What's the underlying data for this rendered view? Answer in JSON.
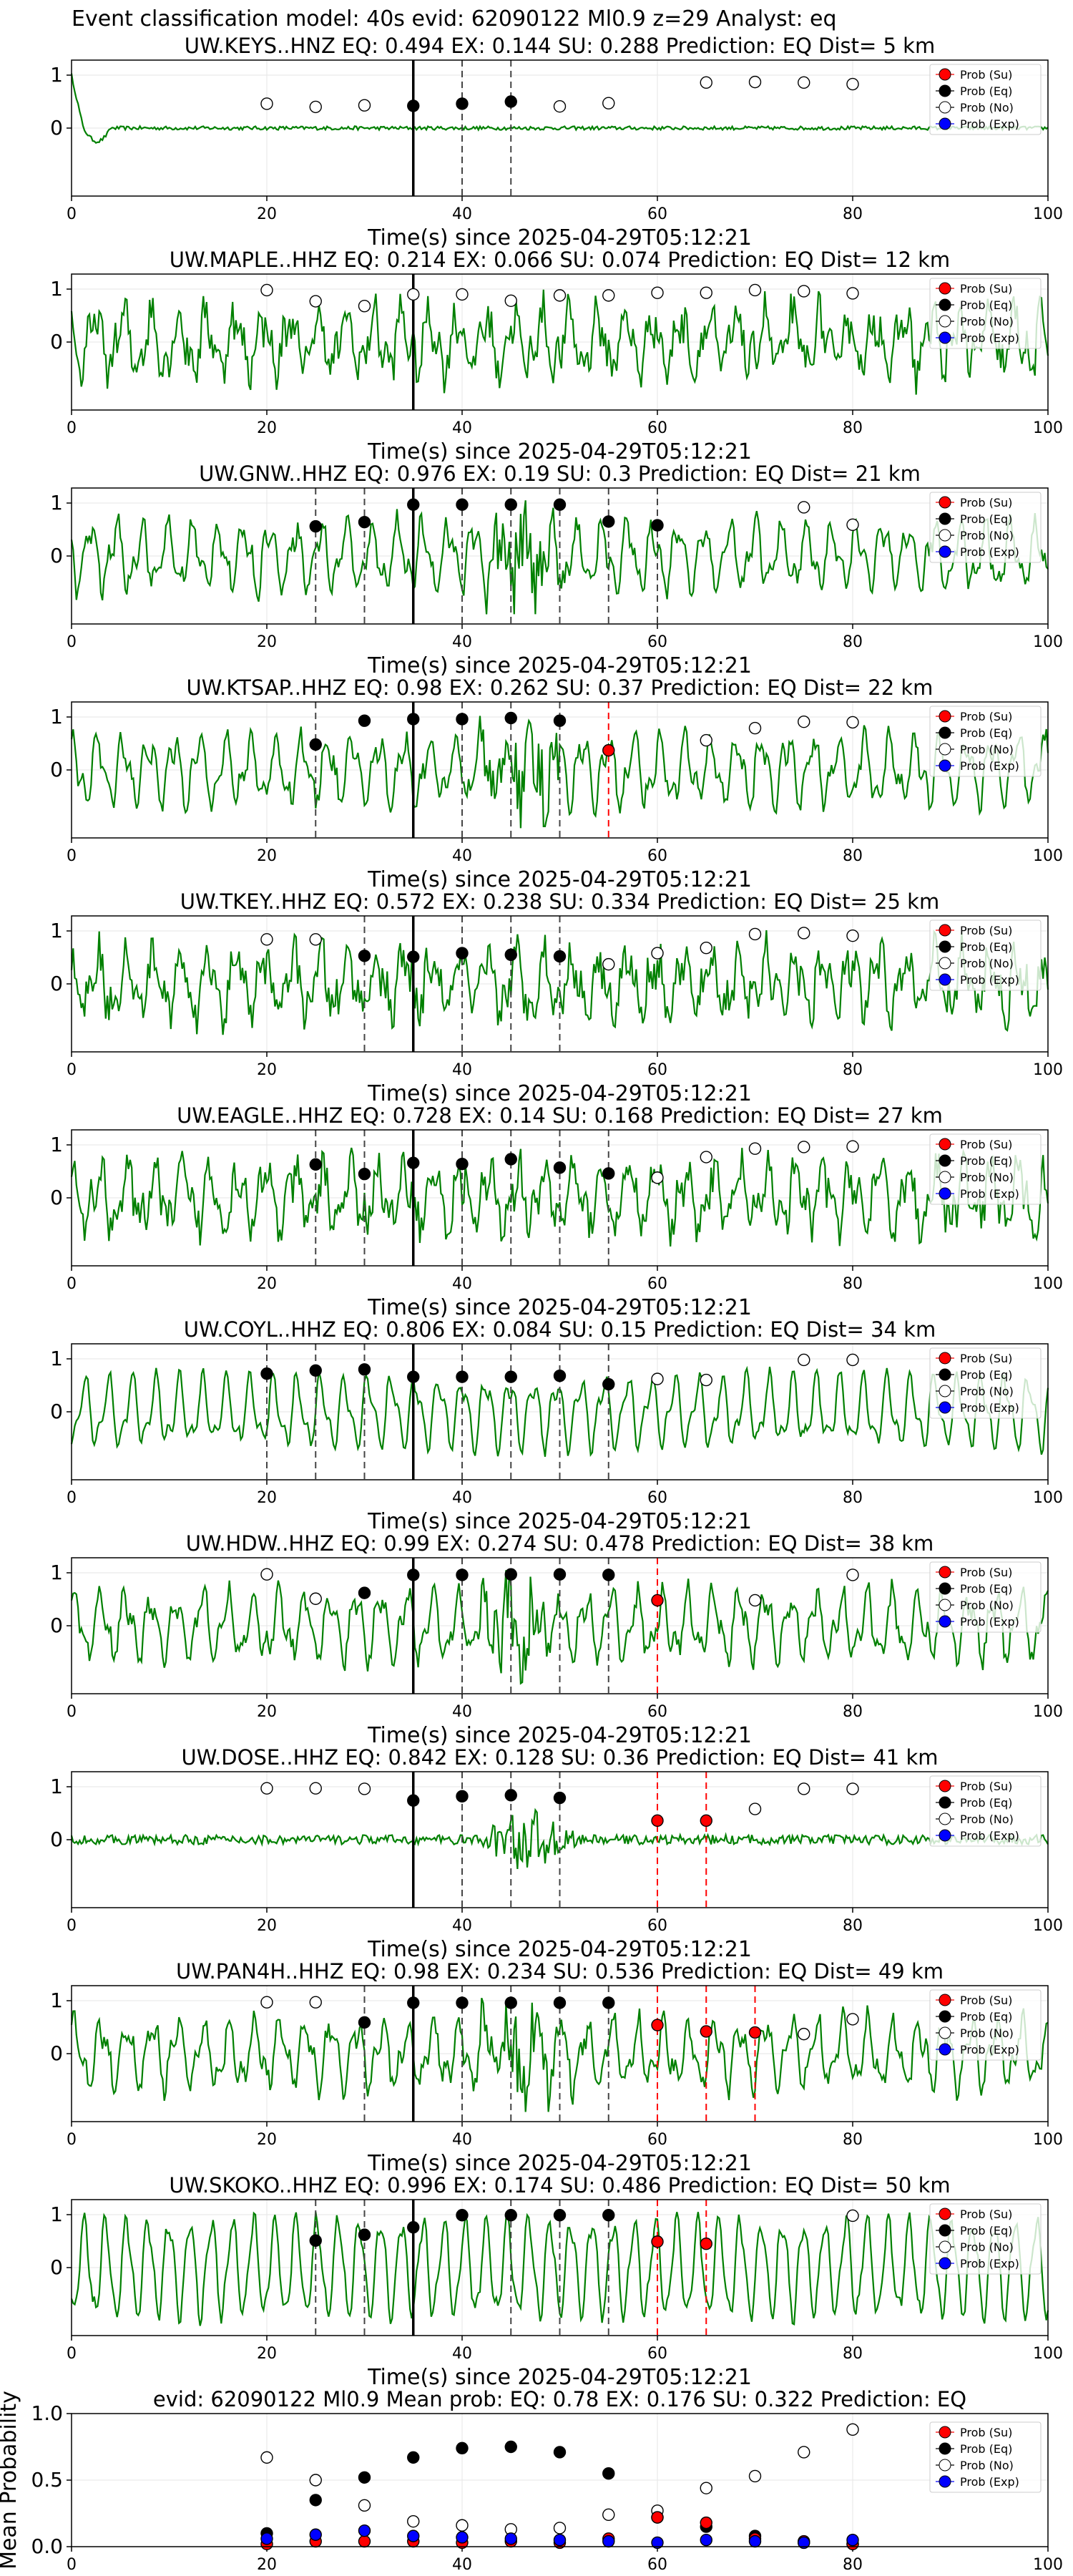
{
  "figure": {
    "suptitle": "Event classification model: 40s evid: 62090122 Ml0.9 z=29 Analyst: eq",
    "xlabel": "Time(s) since 2025-04-29T05:12:21",
    "legend": [
      "Prob (Su)",
      "Prob (Eq)",
      "Prob (No)",
      "Prob (Exp)"
    ],
    "colors": {
      "waveform": "#008000",
      "su": "#ff0000",
      "eq": "#000000",
      "no": "#ffffff",
      "exp": "#0000ff",
      "pick": "#000000",
      "su_line": "#ff0000"
    }
  },
  "chart_data": [
    {
      "type": "line",
      "station": "UW.KEYS..HNZ",
      "title": "UW.KEYS..HNZ   EQ: 0.494  EX: 0.144  SU: 0.288   Prediction: EQ    Dist= 5 km",
      "xlim": [
        0,
        100
      ],
      "ylim": [
        -1,
        1
      ],
      "xticks": [
        0,
        20,
        40,
        60,
        80,
        100
      ],
      "yticks": [
        0,
        1
      ],
      "grid": true,
      "legend": "right",
      "p_arrival": 35,
      "style": "keys",
      "eq_lines": [
        40,
        45
      ],
      "su_lines": [],
      "eq_points": [
        [
          35,
          0.42
        ],
        [
          40,
          0.46
        ],
        [
          45,
          0.5
        ]
      ],
      "su_points": [],
      "no_points": [
        [
          20,
          0.46
        ],
        [
          25,
          0.4
        ],
        [
          30,
          0.43
        ],
        [
          50,
          0.41
        ],
        [
          55,
          0.47
        ],
        [
          65,
          0.86
        ],
        [
          70,
          0.87
        ],
        [
          75,
          0.86
        ],
        [
          80,
          0.83
        ]
      ]
    },
    {
      "type": "line",
      "station": "UW.MAPLE..HHZ",
      "title": "UW.MAPLE..HHZ   EQ: 0.214  EX: 0.066  SU: 0.074   Prediction: EQ    Dist= 12 km",
      "xlim": [
        0,
        100
      ],
      "ylim": [
        -1,
        1
      ],
      "xticks": [
        0,
        20,
        40,
        60,
        80,
        100
      ],
      "yticks": [
        0,
        1
      ],
      "grid": true,
      "legend": "right",
      "p_arrival": 35,
      "style": "noisy",
      "eq_lines": [],
      "su_lines": [],
      "eq_points": [],
      "su_points": [],
      "no_points": [
        [
          20,
          0.98
        ],
        [
          25,
          0.77
        ],
        [
          30,
          0.68
        ],
        [
          35,
          0.9
        ],
        [
          40,
          0.9
        ],
        [
          45,
          0.78
        ],
        [
          50,
          0.88
        ],
        [
          55,
          0.88
        ],
        [
          60,
          0.93
        ],
        [
          65,
          0.93
        ],
        [
          70,
          0.98
        ],
        [
          75,
          0.96
        ],
        [
          80,
          0.92
        ]
      ]
    },
    {
      "type": "line",
      "station": "UW.GNW..HHZ",
      "title": "UW.GNW..HHZ   EQ: 0.976  EX: 0.19  SU: 0.3   Prediction: EQ    Dist= 21 km",
      "xlim": [
        0,
        100
      ],
      "ylim": [
        -1,
        1
      ],
      "xticks": [
        0,
        20,
        40,
        60,
        80,
        100
      ],
      "yticks": [
        0,
        1
      ],
      "grid": true,
      "legend": "right",
      "p_arrival": 35,
      "style": "burst",
      "eq_lines": [
        25,
        30,
        40,
        45,
        50,
        55,
        60
      ],
      "su_lines": [],
      "eq_points": [
        [
          25,
          0.56
        ],
        [
          30,
          0.64
        ],
        [
          35,
          0.97
        ],
        [
          40,
          0.97
        ],
        [
          45,
          0.97
        ],
        [
          50,
          0.97
        ],
        [
          55,
          0.65
        ],
        [
          60,
          0.58
        ]
      ],
      "su_points": [],
      "no_points": [
        [
          75,
          0.92
        ],
        [
          80,
          0.59
        ]
      ]
    },
    {
      "type": "line",
      "station": "UW.KTSAP..HHZ",
      "title": "UW.KTSAP..HHZ   EQ: 0.98  EX: 0.262  SU: 0.37   Prediction: EQ    Dist= 22 km",
      "xlim": [
        0,
        100
      ],
      "ylim": [
        -1,
        1
      ],
      "xticks": [
        0,
        20,
        40,
        60,
        80,
        100
      ],
      "yticks": [
        0,
        1
      ],
      "grid": true,
      "legend": "right",
      "p_arrival": 35,
      "style": "burst",
      "eq_lines": [
        25,
        40,
        45,
        50
      ],
      "su_lines": [
        55
      ],
      "eq_points": [
        [
          25,
          0.48
        ],
        [
          30,
          0.93
        ],
        [
          35,
          0.96
        ],
        [
          40,
          0.96
        ],
        [
          45,
          0.98
        ],
        [
          50,
          0.93
        ]
      ],
      "su_points": [
        [
          55,
          0.37
        ]
      ],
      "no_points": [
        [
          65,
          0.56
        ],
        [
          70,
          0.79
        ],
        [
          75,
          0.91
        ],
        [
          80,
          0.9
        ]
      ]
    },
    {
      "type": "line",
      "station": "UW.TKEY..HHZ",
      "title": "UW.TKEY..HHZ   EQ: 0.572  EX: 0.238  SU: 0.334   Prediction: EQ    Dist= 25 km",
      "xlim": [
        0,
        100
      ],
      "ylim": [
        -1,
        1
      ],
      "xticks": [
        0,
        20,
        40,
        60,
        80,
        100
      ],
      "yticks": [
        0,
        1
      ],
      "grid": true,
      "legend": "right",
      "p_arrival": 35,
      "style": "noisy",
      "eq_lines": [
        30,
        40,
        45,
        50
      ],
      "su_lines": [],
      "eq_points": [
        [
          30,
          0.53
        ],
        [
          35,
          0.51
        ],
        [
          40,
          0.58
        ],
        [
          45,
          0.55
        ],
        [
          50,
          0.52
        ]
      ],
      "su_points": [],
      "no_points": [
        [
          20,
          0.84
        ],
        [
          25,
          0.84
        ],
        [
          55,
          0.37
        ],
        [
          60,
          0.58
        ],
        [
          65,
          0.68
        ],
        [
          70,
          0.94
        ],
        [
          75,
          0.96
        ],
        [
          80,
          0.91
        ]
      ]
    },
    {
      "type": "line",
      "station": "UW.EAGLE..HHZ",
      "title": "UW.EAGLE..HHZ   EQ: 0.728  EX: 0.14  SU: 0.168   Prediction: EQ    Dist= 27 km",
      "xlim": [
        0,
        100
      ],
      "ylim": [
        -1,
        1
      ],
      "xticks": [
        0,
        20,
        40,
        60,
        80,
        100
      ],
      "yticks": [
        0,
        1
      ],
      "grid": true,
      "legend": "right",
      "p_arrival": 35,
      "style": "noisy",
      "eq_lines": [
        25,
        30,
        40,
        45,
        50,
        55
      ],
      "su_lines": [],
      "eq_points": [
        [
          25,
          0.63
        ],
        [
          30,
          0.45
        ],
        [
          35,
          0.66
        ],
        [
          40,
          0.64
        ],
        [
          45,
          0.73
        ],
        [
          50,
          0.57
        ],
        [
          55,
          0.46
        ]
      ],
      "su_points": [],
      "no_points": [
        [
          60,
          0.38
        ],
        [
          65,
          0.77
        ],
        [
          70,
          0.93
        ],
        [
          75,
          0.96
        ],
        [
          80,
          0.97
        ]
      ]
    },
    {
      "type": "line",
      "station": "UW.COYL..HHZ",
      "title": "UW.COYL..HHZ   EQ: 0.806  EX: 0.084  SU: 0.15   Prediction: EQ    Dist= 34 km",
      "xlim": [
        0,
        100
      ],
      "ylim": [
        -1,
        1
      ],
      "xticks": [
        0,
        20,
        40,
        60,
        80,
        100
      ],
      "yticks": [
        0,
        1
      ],
      "grid": true,
      "legend": "right",
      "p_arrival": 35,
      "style": "smooth",
      "eq_lines": [
        20,
        25,
        30,
        40,
        45,
        50,
        55
      ],
      "su_lines": [],
      "eq_points": [
        [
          20,
          0.72
        ],
        [
          25,
          0.78
        ],
        [
          30,
          0.8
        ],
        [
          35,
          0.66
        ],
        [
          40,
          0.66
        ],
        [
          45,
          0.66
        ],
        [
          50,
          0.68
        ],
        [
          55,
          0.52
        ]
      ],
      "su_points": [],
      "no_points": [
        [
          60,
          0.62
        ],
        [
          65,
          0.6
        ],
        [
          75,
          0.98
        ],
        [
          80,
          0.98
        ]
      ]
    },
    {
      "type": "line",
      "station": "UW.HDW..HHZ",
      "title": "UW.HDW..HHZ   EQ: 0.99  EX: 0.274  SU: 0.478   Prediction: EQ    Dist= 38 km",
      "xlim": [
        0,
        100
      ],
      "ylim": [
        -1,
        1
      ],
      "xticks": [
        0,
        20,
        40,
        60,
        80,
        100
      ],
      "yticks": [
        0,
        1
      ],
      "grid": true,
      "legend": "right",
      "p_arrival": 35,
      "style": "burst",
      "eq_lines": [
        40,
        45,
        50,
        55
      ],
      "su_lines": [
        60
      ],
      "eq_points": [
        [
          30,
          0.62
        ],
        [
          35,
          0.96
        ],
        [
          40,
          0.96
        ],
        [
          45,
          0.97
        ],
        [
          50,
          0.97
        ],
        [
          55,
          0.96
        ]
      ],
      "su_points": [
        [
          60,
          0.48
        ]
      ],
      "no_points": [
        [
          20,
          0.97
        ],
        [
          25,
          0.51
        ],
        [
          70,
          0.48
        ],
        [
          80,
          0.96
        ]
      ]
    },
    {
      "type": "line",
      "station": "UW.DOSE..HHZ",
      "title": "UW.DOSE..HHZ   EQ: 0.842  EX: 0.128  SU: 0.36   Prediction: EQ    Dist= 41 km",
      "xlim": [
        0,
        100
      ],
      "ylim": [
        -1,
        1
      ],
      "xticks": [
        0,
        20,
        40,
        60,
        80,
        100
      ],
      "yticks": [
        0,
        1
      ],
      "grid": true,
      "legend": "right",
      "p_arrival": 35,
      "style": "dose",
      "eq_lines": [
        40,
        45,
        50
      ],
      "su_lines": [
        60,
        65
      ],
      "eq_points": [
        [
          35,
          0.74
        ],
        [
          40,
          0.82
        ],
        [
          45,
          0.84
        ],
        [
          50,
          0.79
        ]
      ],
      "su_points": [
        [
          60,
          0.36
        ],
        [
          65,
          0.36
        ]
      ],
      "no_points": [
        [
          20,
          0.97
        ],
        [
          25,
          0.97
        ],
        [
          30,
          0.96
        ],
        [
          70,
          0.58
        ],
        [
          75,
          0.96
        ],
        [
          80,
          0.96
        ]
      ]
    },
    {
      "type": "line",
      "station": "UW.PAN4H..HHZ",
      "title": "UW.PAN4H..HHZ   EQ: 0.98  EX: 0.234  SU: 0.536   Prediction: EQ    Dist= 49 km",
      "xlim": [
        0,
        100
      ],
      "ylim": [
        -1,
        1
      ],
      "xticks": [
        0,
        20,
        40,
        60,
        80,
        100
      ],
      "yticks": [
        0,
        1
      ],
      "grid": true,
      "legend": "right",
      "p_arrival": 35,
      "style": "burst",
      "eq_lines": [
        30,
        40,
        45,
        50,
        55
      ],
      "su_lines": [
        60,
        65,
        70
      ],
      "eq_points": [
        [
          30,
          0.59
        ],
        [
          35,
          0.96
        ],
        [
          40,
          0.96
        ],
        [
          45,
          0.96
        ],
        [
          50,
          0.96
        ],
        [
          55,
          0.96
        ]
      ],
      "su_points": [
        [
          60,
          0.54
        ],
        [
          65,
          0.42
        ],
        [
          70,
          0.4
        ]
      ],
      "no_points": [
        [
          20,
          0.97
        ],
        [
          25,
          0.97
        ],
        [
          75,
          0.37
        ],
        [
          80,
          0.65
        ]
      ]
    },
    {
      "type": "line",
      "station": "UW.SKOKO..HHZ",
      "title": "UW.SKOKO..HHZ   EQ: 0.996  EX: 0.174  SU: 0.486   Prediction: EQ    Dist= 50 km",
      "xlim": [
        0,
        100
      ],
      "ylim": [
        -1,
        1
      ],
      "xticks": [
        0,
        20,
        40,
        60,
        80,
        100
      ],
      "yticks": [
        0,
        1
      ],
      "grid": true,
      "legend": "right",
      "p_arrival": 35,
      "style": "skoko",
      "eq_lines": [
        25,
        30,
        45,
        50,
        55
      ],
      "su_lines": [
        60,
        65
      ],
      "eq_points": [
        [
          25,
          0.51
        ],
        [
          30,
          0.62
        ],
        [
          35,
          0.76
        ],
        [
          40,
          0.99
        ],
        [
          45,
          0.99
        ],
        [
          50,
          0.99
        ],
        [
          55,
          0.99
        ]
      ],
      "su_points": [
        [
          60,
          0.49
        ],
        [
          65,
          0.45
        ]
      ],
      "no_points": [
        [
          80,
          0.98
        ]
      ]
    },
    {
      "type": "scatter",
      "title": "evid: 62090122  Ml0.9   Mean prob:   EQ: 0.78  EX: 0.176  SU: 0.322   Prediction: EQ",
      "ylabel": "Mean Probability",
      "xlim": [
        0,
        100
      ],
      "ylim": [
        0,
        1
      ],
      "xticks": [
        0,
        20,
        40,
        60,
        80,
        100
      ],
      "yticks": [
        0.0,
        0.5,
        1.0
      ],
      "grid": true,
      "legend": "right",
      "x": [
        20,
        25,
        30,
        35,
        40,
        45,
        50,
        55,
        60,
        65,
        70,
        75,
        80
      ],
      "series": [
        {
          "name": "Prob (Su)",
          "values": [
            0.02,
            0.04,
            0.04,
            0.04,
            0.03,
            0.04,
            0.03,
            0.06,
            0.22,
            0.18,
            0.06,
            0.04,
            0.02
          ]
        },
        {
          "name": "Prob (Eq)",
          "values": [
            0.1,
            0.35,
            0.52,
            0.67,
            0.74,
            0.75,
            0.71,
            0.55,
            0.22,
            0.15,
            0.08,
            0.03,
            0.02
          ]
        },
        {
          "name": "Prob (No)",
          "values": [
            0.67,
            0.5,
            0.31,
            0.19,
            0.16,
            0.13,
            0.14,
            0.24,
            0.27,
            0.44,
            0.53,
            0.71,
            0.88
          ]
        },
        {
          "name": "Prob (Exp)",
          "values": [
            0.06,
            0.09,
            0.12,
            0.08,
            0.07,
            0.06,
            0.05,
            0.04,
            0.03,
            0.05,
            0.04,
            0.03,
            0.05
          ]
        }
      ]
    }
  ]
}
